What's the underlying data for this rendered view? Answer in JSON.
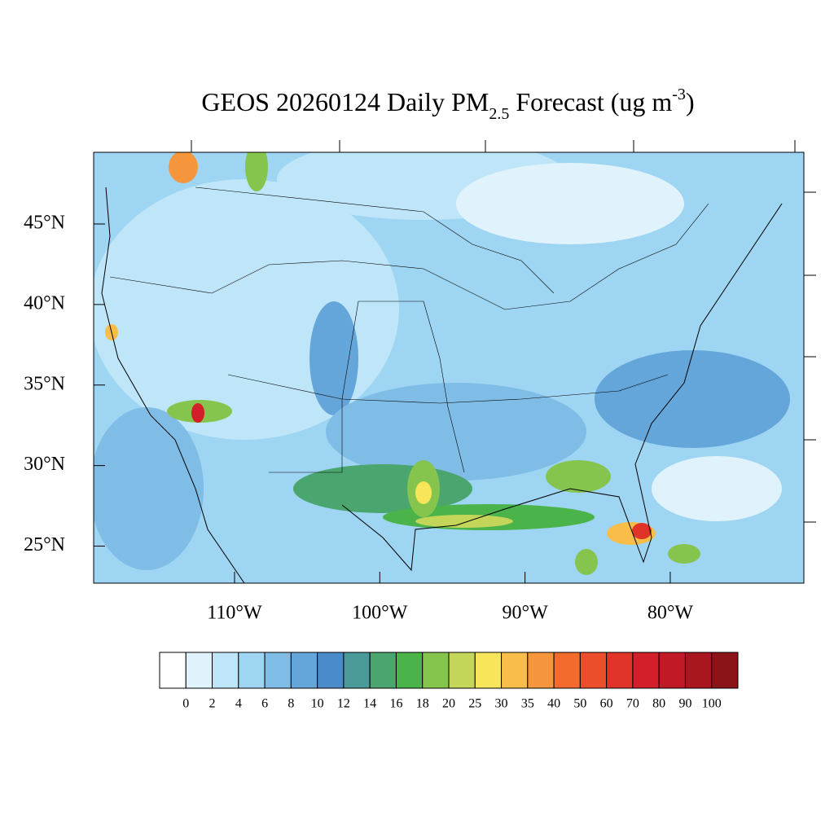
{
  "chart_data": {
    "type": "map",
    "title": {
      "main": "GEOS 20260124 Daily PM",
      "sub": "2.5",
      "mid": " Forecast (ug m",
      "sup": "-3",
      "end": ")"
    },
    "xlim": [
      -119.7,
      -70.8
    ],
    "ylim": [
      22.7,
      49.45
    ],
    "xticks": [
      {
        "value": -110,
        "label": "110°W"
      },
      {
        "value": -100,
        "label": "100°W"
      },
      {
        "value": -90,
        "label": "90°W"
      },
      {
        "value": -80,
        "label": "80°W"
      }
    ],
    "yticks": [
      {
        "value": 45,
        "label": "45°N"
      },
      {
        "value": 40,
        "label": "40°N"
      },
      {
        "value": 35,
        "label": "35°N"
      },
      {
        "value": 30,
        "label": "30°N"
      },
      {
        "value": 25,
        "label": "25°N"
      }
    ],
    "levels": [
      0,
      2,
      4,
      6,
      8,
      10,
      12,
      14,
      16,
      18,
      20,
      25,
      30,
      35,
      40,
      50,
      60,
      70,
      80,
      90,
      100
    ],
    "colors": [
      "#ffffff",
      "#e0f3fc",
      "#bfe6f8",
      "#9ed5f3",
      "#80bde6",
      "#64a6da",
      "#4a8bca",
      "#4a9a9a",
      "#4aa56e",
      "#4ab34a",
      "#85c44d",
      "#c4d65a",
      "#f7e65a",
      "#f9bd4a",
      "#f6963c",
      "#f26a2c",
      "#ea4e2a",
      "#e03428",
      "#d21f2a",
      "#bf1a26",
      "#a8161f",
      "#8b1418"
    ]
  }
}
